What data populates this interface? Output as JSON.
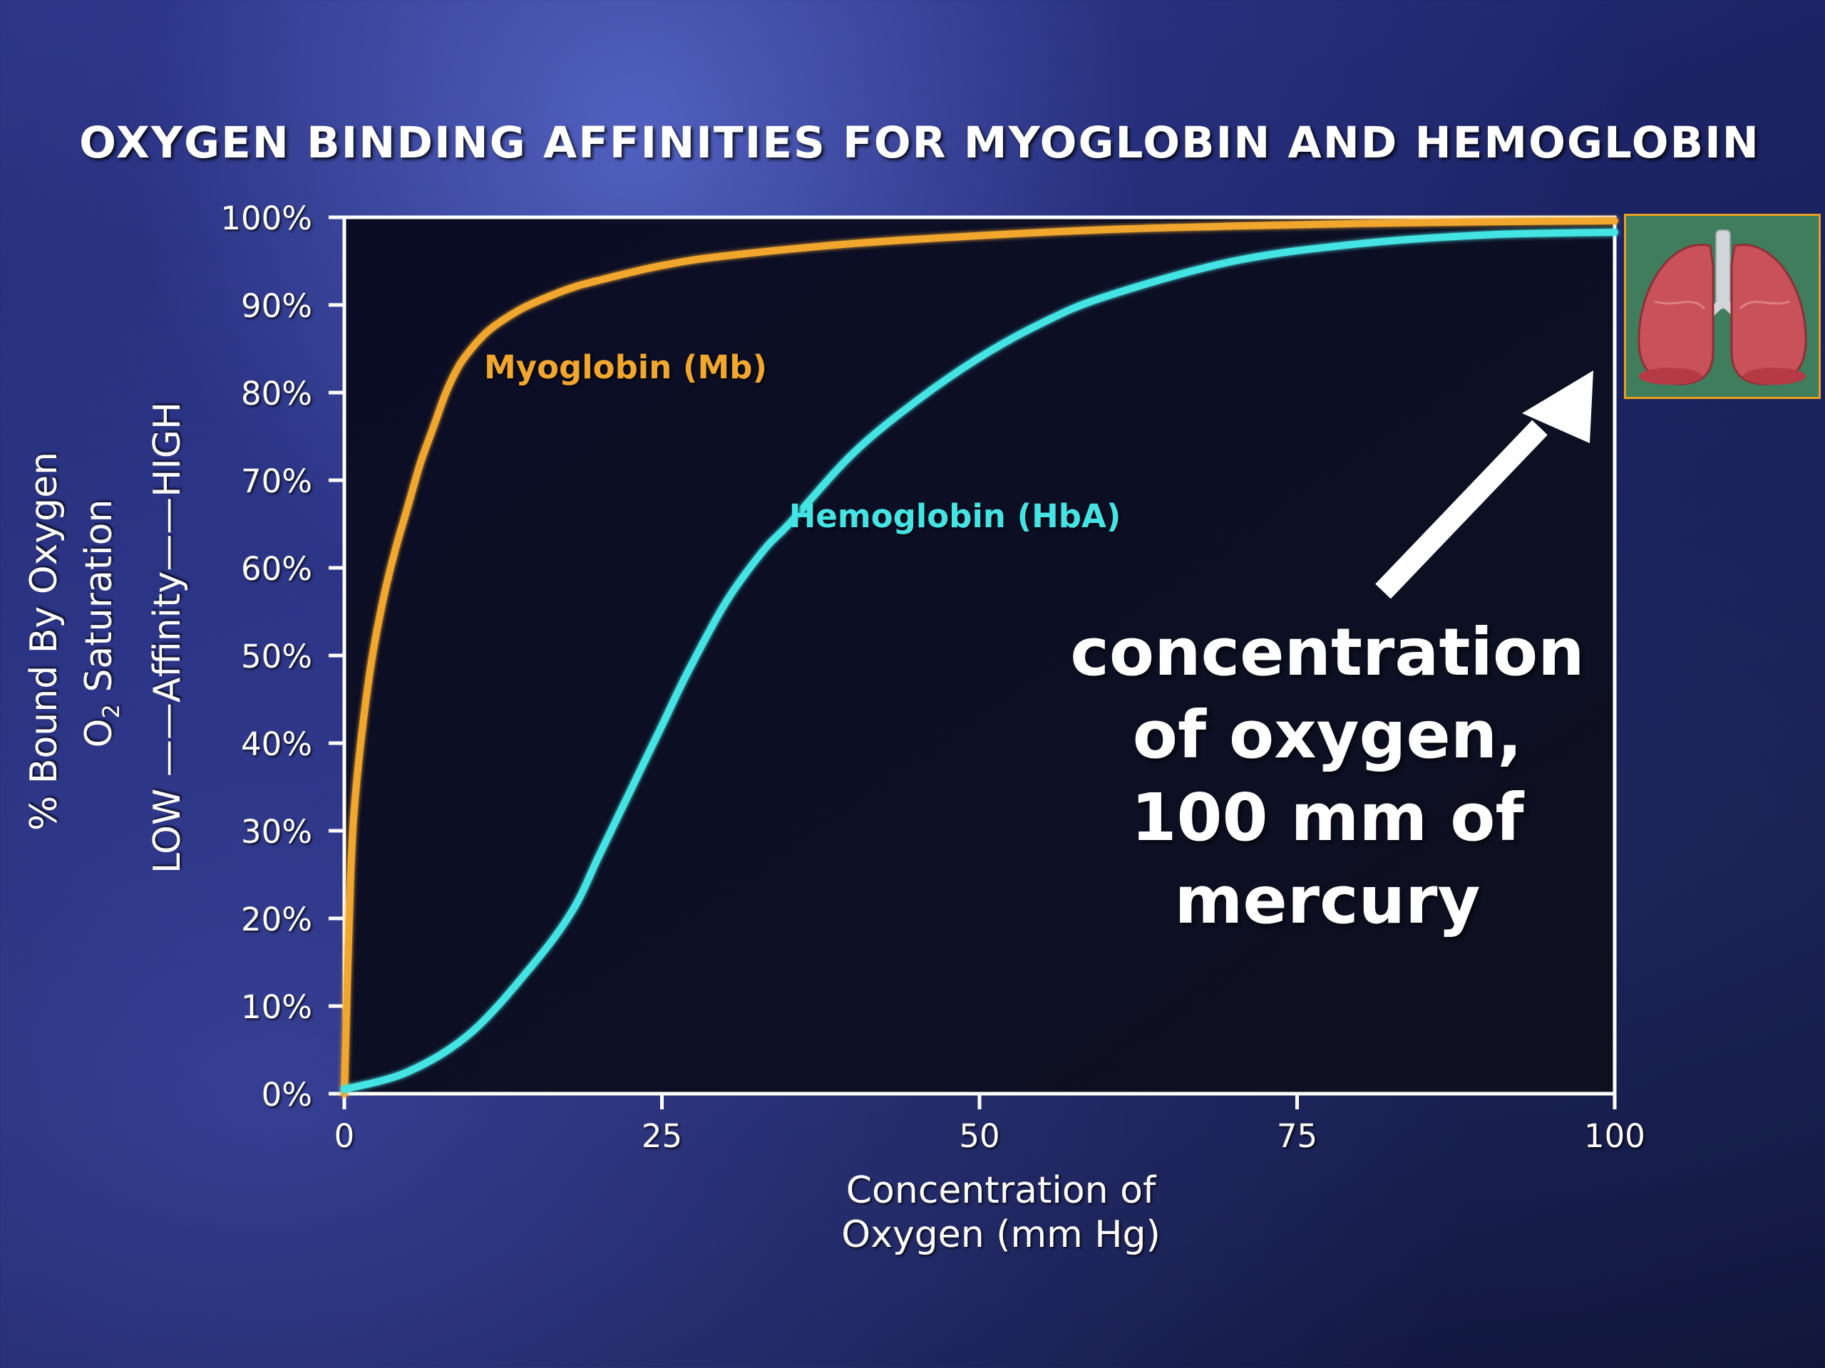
{
  "title": "OXYGEN BINDING AFFINITIES FOR MYOGLOBIN AND HEMOGLOBIN",
  "y_labels": {
    "line1": "% Bound By Oxygen",
    "line2_prefix": "O",
    "line2_sub": "2",
    "line2_suffix": " Saturation",
    "line3": "LOW ——Affinity——HIGH"
  },
  "x_label": {
    "line1": "Concentration of",
    "line2": "Oxygen (mm Hg)"
  },
  "annotation": {
    "lines": [
      "concentration",
      "of oxygen,",
      "100 mm of",
      "mercury"
    ]
  },
  "colors": {
    "myoglobin": "#f1a72d",
    "hemoglobin": "#45e4e4",
    "plot_bg": "#0b0d24",
    "axis": "#ffffff",
    "lung_box_border": "#e9a020"
  },
  "image": {
    "icon": "lungs-icon"
  },
  "chart_data": {
    "type": "line",
    "title": "OXYGEN BINDING AFFINITIES FOR MYOGLOBIN AND HEMOGLOBIN",
    "xlabel": "Concentration of Oxygen (mm Hg)",
    "ylabel": "% Bound By Oxygen",
    "xlim": [
      0,
      100
    ],
    "ylim": [
      0,
      100
    ],
    "x_ticks": [
      0,
      25,
      50,
      75,
      100
    ],
    "x_tick_labels": [
      "0",
      "25",
      "50",
      "75",
      "100"
    ],
    "y_ticks": [
      0,
      10,
      20,
      30,
      40,
      50,
      60,
      70,
      80,
      90,
      100
    ],
    "y_tick_labels": [
      "0%",
      "10%",
      "20%",
      "30%",
      "40%",
      "50%",
      "60%",
      "70%",
      "80%",
      "90%",
      "100%"
    ],
    "grid": false,
    "series": [
      {
        "name": "Myoglobin (Mb)",
        "color": "#f1a72d",
        "x": [
          0,
          0.5,
          1,
          2,
          3,
          4,
          5,
          6,
          7,
          8,
          9,
          10,
          11,
          12,
          14,
          16,
          18,
          20,
          25,
          30,
          40,
          50,
          60,
          70,
          80,
          90,
          100
        ],
        "y": [
          0,
          25,
          36,
          48,
          56,
          62,
          67,
          72,
          76,
          80,
          83,
          85,
          86.6,
          87.8,
          89.6,
          90.9,
          92,
          92.8,
          94.5,
          95.6,
          97,
          97.9,
          98.6,
          99,
          99.3,
          99.5,
          99.6
        ]
      },
      {
        "name": "Hemoglobin (HbA)",
        "color": "#45e4e4",
        "x": [
          0,
          5,
          10,
          15,
          18,
          20,
          22,
          25,
          27,
          30,
          33,
          35,
          40,
          45,
          50,
          55,
          60,
          70,
          80,
          90,
          100
        ],
        "y": [
          0.5,
          2.5,
          7,
          15,
          21,
          27,
          33,
          42,
          48,
          56,
          62,
          65,
          73,
          79,
          84,
          88,
          91,
          95,
          97,
          98,
          98.3
        ]
      }
    ],
    "annotations": [
      {
        "text": "Myoglobin (Mb)",
        "x": 11,
        "y": 83
      },
      {
        "text": "Hemoglobin (HbA)",
        "x": 35,
        "y": 66
      }
    ]
  }
}
